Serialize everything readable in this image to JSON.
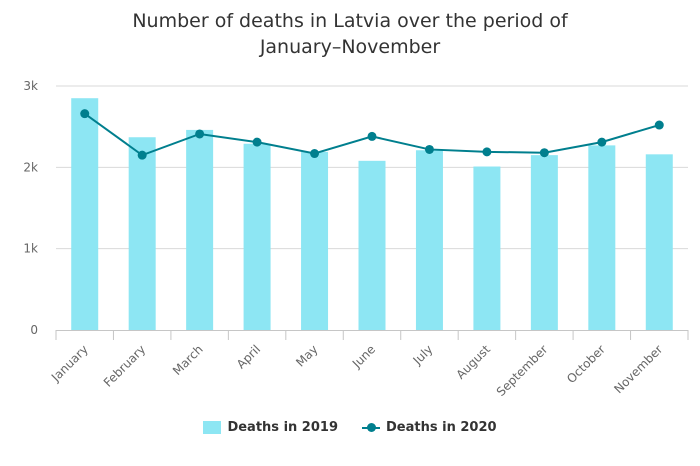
{
  "colors": {
    "bar": "#8de6f3",
    "line": "#007f8e",
    "grid": "#d9d9d9",
    "axis": "#c6c6c6"
  },
  "chart_data": {
    "type": "bar",
    "title": "Number of deaths in Latvia over the period of January–November",
    "title_lines": [
      "Number of deaths in Latvia over the period of",
      "January–November"
    ],
    "categories": [
      "January",
      "February",
      "March",
      "April",
      "May",
      "June",
      "July",
      "August",
      "September",
      "October",
      "November"
    ],
    "ytick_labels": [
      "0",
      "1k",
      "2k",
      "3k"
    ],
    "ytick_values": [
      0,
      1000,
      2000,
      3000
    ],
    "ylim": [
      0,
      3000
    ],
    "grid": true,
    "legend_position": "bottom-center",
    "series": [
      {
        "name": "Deaths in 2019",
        "type": "bar",
        "values": [
          2850,
          2370,
          2460,
          2290,
          2190,
          2080,
          2210,
          2010,
          2150,
          2270,
          2160
        ]
      },
      {
        "name": "Deaths in 2020",
        "type": "line",
        "values": [
          2660,
          2150,
          2410,
          2310,
          2170,
          2380,
          2220,
          2190,
          2180,
          2310,
          2520
        ]
      }
    ]
  }
}
